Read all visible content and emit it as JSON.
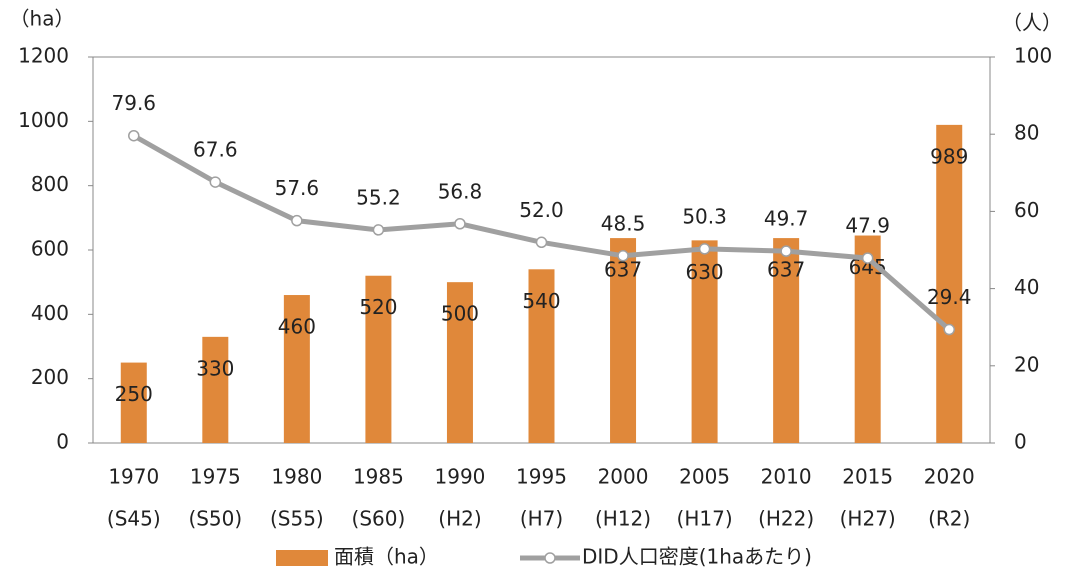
{
  "chart_data": {
    "type": "bar",
    "y_unit": "（ha）",
    "y2_unit": "（人）",
    "categories": [
      [
        "1970",
        "(S45)"
      ],
      [
        "1975",
        "(S50)"
      ],
      [
        "1980",
        "(S55)"
      ],
      [
        "1985",
        "(S60)"
      ],
      [
        "1990",
        "(H2)"
      ],
      [
        "1995",
        "(H7)"
      ],
      [
        "2000",
        "(H12)"
      ],
      [
        "2005",
        "(H17)"
      ],
      [
        "2010",
        "(H22)"
      ],
      [
        "2015",
        "(H27)"
      ],
      [
        "2020",
        "(R2)"
      ]
    ],
    "series": [
      {
        "name": "面積（ha）",
        "type": "bar",
        "color": "#e0883a",
        "values": [
          250,
          330,
          460,
          520,
          500,
          540,
          637,
          630,
          637,
          645,
          989
        ]
      },
      {
        "name": "DID人口密度(1haあたり)",
        "type": "line",
        "axis": "y2",
        "color": "#a0a0a0",
        "values": [
          79.6,
          67.6,
          57.6,
          55.2,
          56.8,
          52.0,
          48.5,
          50.3,
          49.7,
          47.9,
          29.4
        ],
        "value_labels": [
          "79.6",
          "67.6",
          "57.6",
          "55.2",
          "56.8",
          "52.0",
          "48.5",
          "50.3",
          "49.7",
          "47.9",
          "29.4"
        ]
      }
    ],
    "ylim": [
      0,
      1200
    ],
    "yticks": [
      0,
      200,
      400,
      600,
      800,
      1000,
      1200
    ],
    "y2lim": [
      0,
      100
    ],
    "y2ticks": [
      0,
      20,
      40,
      60,
      80,
      100
    ],
    "grid": false,
    "legend": "bottom"
  }
}
